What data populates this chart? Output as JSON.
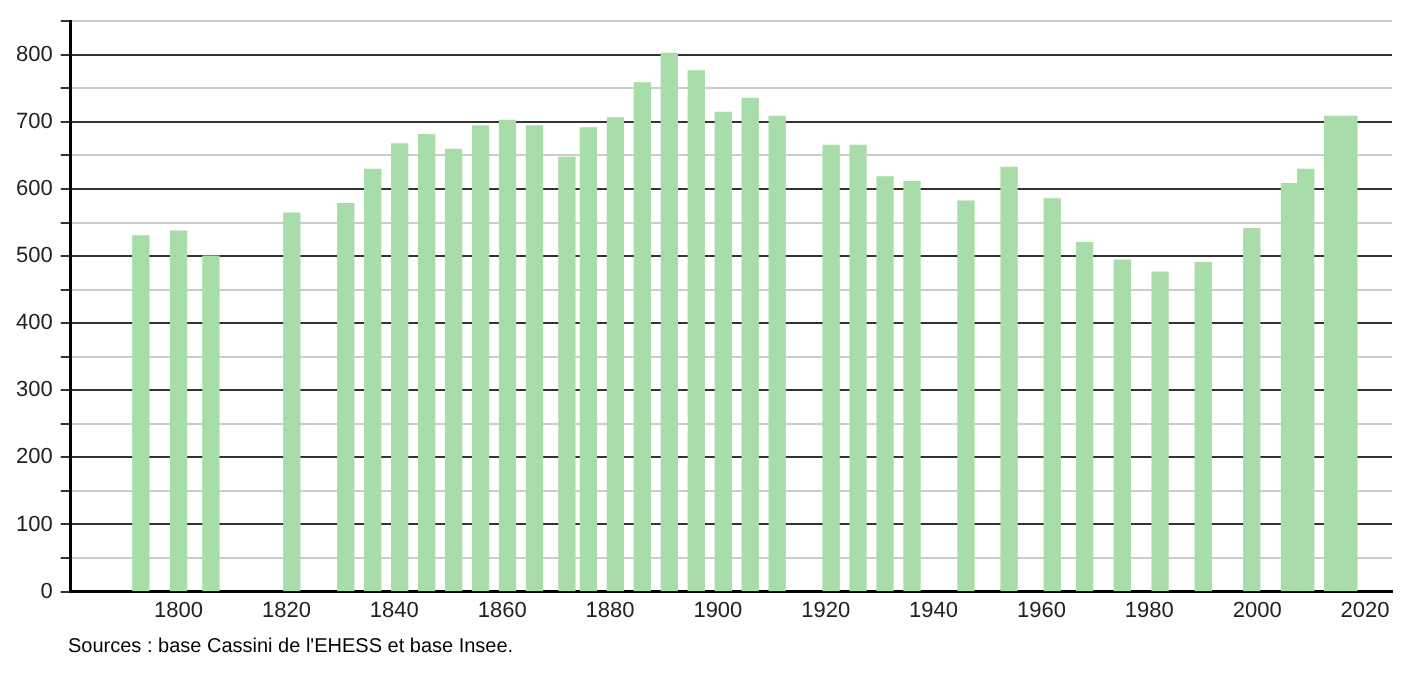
{
  "chart_data": {
    "type": "bar",
    "color": "#a8dca8",
    "x": [
      1793,
      1800,
      1806,
      1821,
      1831,
      1836,
      1841,
      1846,
      1851,
      1856,
      1861,
      1866,
      1872,
      1876,
      1881,
      1886,
      1891,
      1896,
      1901,
      1906,
      1911,
      1921,
      1926,
      1931,
      1936,
      1946,
      1954,
      1962,
      1968,
      1975,
      1982,
      1990,
      1999,
      2006,
      2009,
      2014,
      2017
    ],
    "values": [
      530,
      537,
      500,
      564,
      578,
      629,
      667,
      681,
      659,
      694,
      702,
      694,
      647,
      691,
      706,
      758,
      802,
      776,
      714,
      735,
      708,
      665,
      665,
      618,
      611,
      582,
      632,
      585,
      520,
      494,
      476,
      490,
      541,
      608,
      629,
      708,
      708
    ],
    "xlim": [
      1780,
      2025
    ],
    "xticks": [
      1800,
      1820,
      1840,
      1860,
      1880,
      1900,
      1920,
      1940,
      1960,
      1980,
      2000,
      2020
    ],
    "ylim": [
      0,
      850
    ],
    "yticks": [
      0,
      {
        "value": 50,
        "label": null
      },
      100,
      {
        "value": 150,
        "label": null
      },
      200,
      {
        "value": 250,
        "label": null
      },
      300,
      {
        "value": 350,
        "label": null
      },
      400,
      {
        "value": 450,
        "label": null
      },
      500,
      {
        "value": 550,
        "label": null
      },
      600,
      {
        "value": 650,
        "label": null
      },
      700,
      {
        "value": 750,
        "label": null
      },
      800,
      {
        "value": 850,
        "label": null
      }
    ],
    "grid": "y",
    "legend": false,
    "annotations": [
      "Sources : base Cassini de l'EHESS et base Insee."
    ]
  }
}
